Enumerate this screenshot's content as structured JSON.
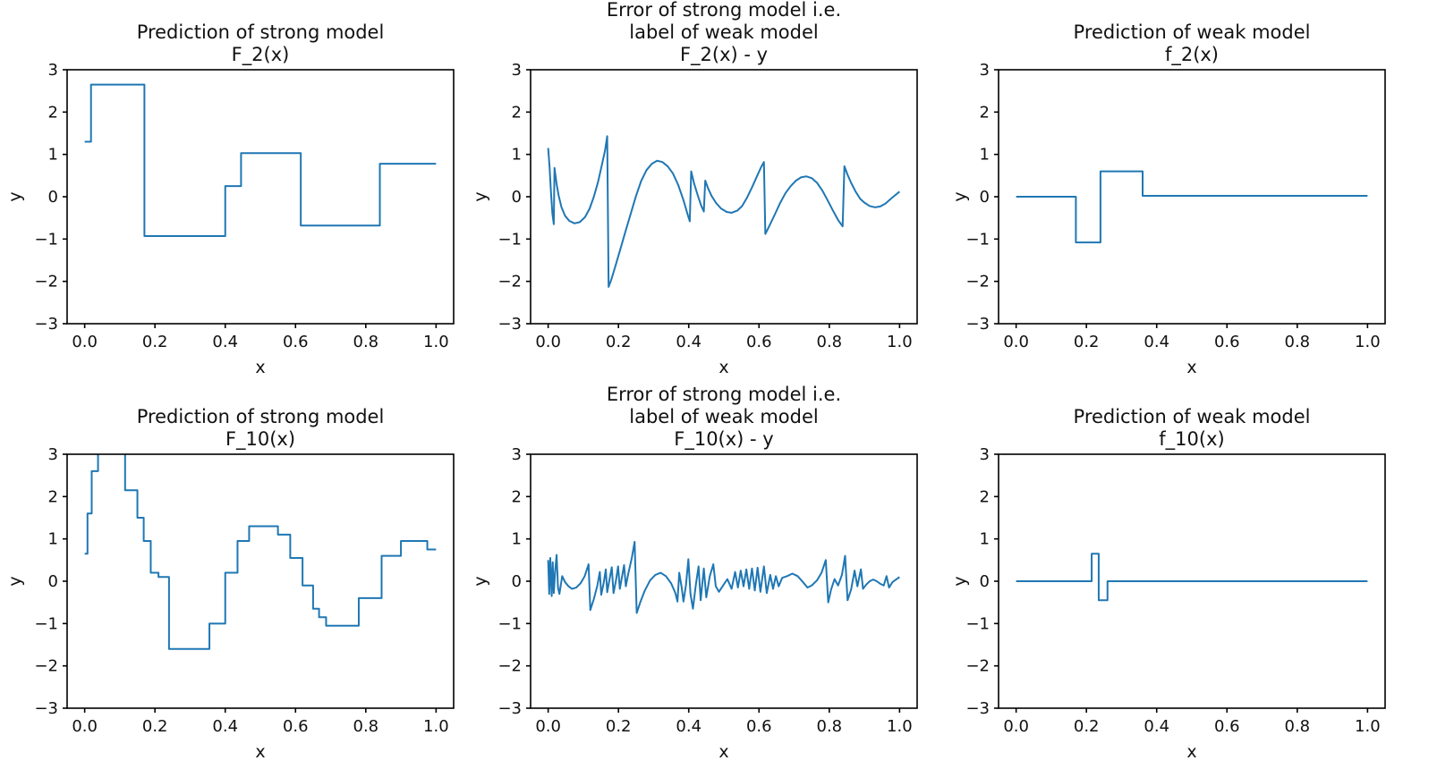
{
  "figure": {
    "background": "#ffffff",
    "line_color": "#1f77b4",
    "axis_color": "#000000",
    "text_color": "#111111",
    "xlabel": "x",
    "ylabel": "y",
    "xlim": [
      -0.05,
      1.05
    ],
    "ylim": [
      -3,
      3
    ],
    "grid": false,
    "legend": "none",
    "x_tick_values": [
      0.0,
      0.2,
      0.4,
      0.6,
      0.8,
      1.0
    ],
    "x_tick_labels": [
      "0.0",
      "0.2",
      "0.4",
      "0.6",
      "0.8",
      "1.0"
    ],
    "y_tick_values": [
      3,
      2,
      1,
      0,
      -1,
      -2,
      -3
    ],
    "y_tick_labels": [
      "3",
      "2",
      "1",
      "0",
      "−1",
      "−2",
      "−3"
    ]
  },
  "chart_data": [
    {
      "id": "strong-F2",
      "type": "step",
      "position": {
        "row": 0,
        "col": 0
      },
      "title_lines": [
        "Prediction of strong model",
        "F_2(x)"
      ],
      "xlabel": "x",
      "ylabel": "y",
      "steps": [
        [
          0.0,
          0.018,
          1.3
        ],
        [
          0.018,
          0.17,
          2.65
        ],
        [
          0.17,
          0.4,
          -0.93
        ],
        [
          0.4,
          0.445,
          0.25
        ],
        [
          0.445,
          0.615,
          1.03
        ],
        [
          0.615,
          0.84,
          -0.68
        ],
        [
          0.84,
          1.0,
          0.78
        ]
      ]
    },
    {
      "id": "error-F2",
      "type": "line",
      "position": {
        "row": 0,
        "col": 1
      },
      "title_lines": [
        "Error of strong model i.e.",
        "label of weak model",
        "F_2(x) - y"
      ],
      "xlabel": "x",
      "ylabel": "y",
      "points": [
        [
          0.0,
          1.15
        ],
        [
          0.004,
          0.7
        ],
        [
          0.008,
          0.1
        ],
        [
          0.012,
          -0.4
        ],
        [
          0.016,
          -0.65
        ],
        [
          0.018,
          0.68
        ],
        [
          0.024,
          0.3
        ],
        [
          0.03,
          0.02
        ],
        [
          0.038,
          -0.25
        ],
        [
          0.048,
          -0.45
        ],
        [
          0.06,
          -0.57
        ],
        [
          0.075,
          -0.63
        ],
        [
          0.09,
          -0.6
        ],
        [
          0.105,
          -0.48
        ],
        [
          0.118,
          -0.28
        ],
        [
          0.13,
          0.0
        ],
        [
          0.142,
          0.35
        ],
        [
          0.152,
          0.72
        ],
        [
          0.162,
          1.1
        ],
        [
          0.168,
          1.43
        ],
        [
          0.172,
          -2.13
        ],
        [
          0.18,
          -1.95
        ],
        [
          0.192,
          -1.62
        ],
        [
          0.205,
          -1.25
        ],
        [
          0.22,
          -0.82
        ],
        [
          0.235,
          -0.4
        ],
        [
          0.25,
          0.02
        ],
        [
          0.265,
          0.38
        ],
        [
          0.28,
          0.63
        ],
        [
          0.295,
          0.78
        ],
        [
          0.31,
          0.85
        ],
        [
          0.325,
          0.82
        ],
        [
          0.34,
          0.72
        ],
        [
          0.355,
          0.55
        ],
        [
          0.37,
          0.28
        ],
        [
          0.385,
          -0.08
        ],
        [
          0.398,
          -0.45
        ],
        [
          0.403,
          -0.58
        ],
        [
          0.407,
          0.6
        ],
        [
          0.415,
          0.32
        ],
        [
          0.425,
          0.05
        ],
        [
          0.435,
          -0.2
        ],
        [
          0.443,
          -0.35
        ],
        [
          0.447,
          0.38
        ],
        [
          0.455,
          0.2
        ],
        [
          0.465,
          0.02
        ],
        [
          0.478,
          -0.15
        ],
        [
          0.492,
          -0.28
        ],
        [
          0.508,
          -0.36
        ],
        [
          0.522,
          -0.38
        ],
        [
          0.538,
          -0.33
        ],
        [
          0.552,
          -0.22
        ],
        [
          0.566,
          -0.02
        ],
        [
          0.58,
          0.22
        ],
        [
          0.594,
          0.48
        ],
        [
          0.606,
          0.7
        ],
        [
          0.614,
          0.82
        ],
        [
          0.618,
          -0.88
        ],
        [
          0.63,
          -0.68
        ],
        [
          0.645,
          -0.42
        ],
        [
          0.66,
          -0.15
        ],
        [
          0.675,
          0.08
        ],
        [
          0.69,
          0.25
        ],
        [
          0.705,
          0.38
        ],
        [
          0.72,
          0.46
        ],
        [
          0.735,
          0.48
        ],
        [
          0.75,
          0.44
        ],
        [
          0.765,
          0.33
        ],
        [
          0.78,
          0.15
        ],
        [
          0.795,
          -0.08
        ],
        [
          0.81,
          -0.32
        ],
        [
          0.825,
          -0.55
        ],
        [
          0.838,
          -0.7
        ],
        [
          0.843,
          0.72
        ],
        [
          0.852,
          0.52
        ],
        [
          0.862,
          0.33
        ],
        [
          0.875,
          0.12
        ],
        [
          0.888,
          -0.05
        ],
        [
          0.9,
          -0.14
        ],
        [
          0.915,
          -0.22
        ],
        [
          0.93,
          -0.25
        ],
        [
          0.945,
          -0.23
        ],
        [
          0.96,
          -0.16
        ],
        [
          0.975,
          -0.05
        ],
        [
          0.988,
          0.04
        ],
        [
          1.0,
          0.12
        ]
      ]
    },
    {
      "id": "weak-f2",
      "type": "step",
      "position": {
        "row": 0,
        "col": 2
      },
      "title_lines": [
        "Prediction of weak model",
        "f_2(x)"
      ],
      "xlabel": "x",
      "ylabel": "y",
      "steps": [
        [
          0.0,
          0.17,
          0.0
        ],
        [
          0.17,
          0.24,
          -1.08
        ],
        [
          0.24,
          0.36,
          0.6
        ],
        [
          0.36,
          1.0,
          0.02
        ]
      ]
    },
    {
      "id": "strong-F10",
      "type": "step",
      "position": {
        "row": 1,
        "col": 0
      },
      "title_lines": [
        "Prediction of strong model",
        "F_10(x)"
      ],
      "xlabel": "x",
      "ylabel": "y",
      "steps": [
        [
          0.0,
          0.008,
          0.65
        ],
        [
          0.008,
          0.02,
          1.6
        ],
        [
          0.02,
          0.038,
          2.6
        ],
        [
          0.038,
          0.115,
          3.4
        ],
        [
          0.115,
          0.15,
          2.15
        ],
        [
          0.15,
          0.168,
          1.5
        ],
        [
          0.168,
          0.188,
          0.95
        ],
        [
          0.188,
          0.21,
          0.2
        ],
        [
          0.21,
          0.24,
          0.1
        ],
        [
          0.24,
          0.355,
          -1.6
        ],
        [
          0.355,
          0.4,
          -1.0
        ],
        [
          0.4,
          0.435,
          0.2
        ],
        [
          0.435,
          0.468,
          0.95
        ],
        [
          0.468,
          0.55,
          1.3
        ],
        [
          0.55,
          0.585,
          1.1
        ],
        [
          0.585,
          0.62,
          0.55
        ],
        [
          0.62,
          0.65,
          -0.1
        ],
        [
          0.65,
          0.667,
          -0.65
        ],
        [
          0.667,
          0.687,
          -0.85
        ],
        [
          0.687,
          0.78,
          -1.05
        ],
        [
          0.78,
          0.845,
          -0.4
        ],
        [
          0.845,
          0.9,
          0.6
        ],
        [
          0.9,
          0.975,
          0.95
        ],
        [
          0.975,
          1.0,
          0.75
        ]
      ]
    },
    {
      "id": "error-F10",
      "type": "line",
      "position": {
        "row": 1,
        "col": 1
      },
      "title_lines": [
        "Error of strong model i.e.",
        "label of weak model",
        "F_10(x) - y"
      ],
      "xlabel": "x",
      "ylabel": "y",
      "points": [
        [
          0.0,
          0.5
        ],
        [
          0.003,
          -0.3
        ],
        [
          0.006,
          0.55
        ],
        [
          0.01,
          -0.35
        ],
        [
          0.013,
          0.45
        ],
        [
          0.016,
          -0.28
        ],
        [
          0.02,
          0.25
        ],
        [
          0.024,
          0.62
        ],
        [
          0.028,
          -0.15
        ],
        [
          0.032,
          -0.3
        ],
        [
          0.04,
          0.12
        ],
        [
          0.048,
          -0.02
        ],
        [
          0.058,
          -0.12
        ],
        [
          0.068,
          -0.18
        ],
        [
          0.08,
          -0.15
        ],
        [
          0.092,
          -0.05
        ],
        [
          0.104,
          0.12
        ],
        [
          0.115,
          0.4
        ],
        [
          0.12,
          -0.68
        ],
        [
          0.13,
          -0.42
        ],
        [
          0.14,
          -0.1
        ],
        [
          0.147,
          0.22
        ],
        [
          0.151,
          -0.32
        ],
        [
          0.158,
          -0.04
        ],
        [
          0.164,
          0.28
        ],
        [
          0.168,
          -0.26
        ],
        [
          0.175,
          0.06
        ],
        [
          0.181,
          0.33
        ],
        [
          0.186,
          -0.28
        ],
        [
          0.193,
          0.02
        ],
        [
          0.199,
          0.35
        ],
        [
          0.204,
          -0.18
        ],
        [
          0.21,
          0.1
        ],
        [
          0.216,
          0.38
        ],
        [
          0.221,
          -0.12
        ],
        [
          0.228,
          0.18
        ],
        [
          0.238,
          0.55
        ],
        [
          0.246,
          0.93
        ],
        [
          0.252,
          -0.75
        ],
        [
          0.262,
          -0.5
        ],
        [
          0.275,
          -0.22
        ],
        [
          0.29,
          0.02
        ],
        [
          0.305,
          0.15
        ],
        [
          0.32,
          0.2
        ],
        [
          0.335,
          0.12
        ],
        [
          0.35,
          -0.05
        ],
        [
          0.362,
          -0.28
        ],
        [
          0.368,
          -0.48
        ],
        [
          0.373,
          0.2
        ],
        [
          0.38,
          -0.15
        ],
        [
          0.385,
          -0.48
        ],
        [
          0.392,
          -0.1
        ],
        [
          0.399,
          0.52
        ],
        [
          0.405,
          -0.3
        ],
        [
          0.412,
          -0.65
        ],
        [
          0.42,
          -0.1
        ],
        [
          0.428,
          0.35
        ],
        [
          0.434,
          -0.45
        ],
        [
          0.443,
          0.3
        ],
        [
          0.45,
          -0.38
        ],
        [
          0.46,
          0.12
        ],
        [
          0.47,
          0.4
        ],
        [
          0.477,
          -0.12
        ],
        [
          0.486,
          -0.25
        ],
        [
          0.498,
          -0.1
        ],
        [
          0.51,
          0.05
        ],
        [
          0.522,
          -0.18
        ],
        [
          0.532,
          0.22
        ],
        [
          0.54,
          -0.15
        ],
        [
          0.548,
          0.25
        ],
        [
          0.556,
          -0.12
        ],
        [
          0.564,
          0.28
        ],
        [
          0.572,
          -0.18
        ],
        [
          0.58,
          0.3
        ],
        [
          0.588,
          -0.22
        ],
        [
          0.596,
          0.32
        ],
        [
          0.604,
          -0.25
        ],
        [
          0.614,
          0.35
        ],
        [
          0.622,
          -0.28
        ],
        [
          0.632,
          0.15
        ],
        [
          0.64,
          -0.18
        ],
        [
          0.648,
          0.12
        ],
        [
          0.656,
          -0.12
        ],
        [
          0.666,
          0.08
        ],
        [
          0.68,
          0.12
        ],
        [
          0.695,
          0.18
        ],
        [
          0.71,
          0.12
        ],
        [
          0.725,
          -0.02
        ],
        [
          0.738,
          -0.15
        ],
        [
          0.75,
          -0.1
        ],
        [
          0.765,
          0.02
        ],
        [
          0.778,
          0.2
        ],
        [
          0.79,
          0.5
        ],
        [
          0.797,
          -0.5
        ],
        [
          0.805,
          -0.2
        ],
        [
          0.815,
          0.05
        ],
        [
          0.825,
          -0.1
        ],
        [
          0.836,
          0.15
        ],
        [
          0.845,
          0.6
        ],
        [
          0.852,
          -0.45
        ],
        [
          0.862,
          -0.2
        ],
        [
          0.872,
          0.25
        ],
        [
          0.88,
          -0.12
        ],
        [
          0.89,
          0.28
        ],
        [
          0.896,
          -0.18
        ],
        [
          0.905,
          -0.08
        ],
        [
          0.915,
          0.0
        ],
        [
          0.925,
          0.04
        ],
        [
          0.935,
          0.0
        ],
        [
          0.945,
          -0.06
        ],
        [
          0.955,
          -0.1
        ],
        [
          0.963,
          0.12
        ],
        [
          0.97,
          -0.15
        ],
        [
          0.98,
          -0.02
        ],
        [
          0.99,
          0.04
        ],
        [
          1.0,
          0.1
        ]
      ]
    },
    {
      "id": "weak-f10",
      "type": "step",
      "position": {
        "row": 1,
        "col": 2
      },
      "title_lines": [
        "Prediction of weak model",
        "f_10(x)"
      ],
      "xlabel": "x",
      "ylabel": "y",
      "steps": [
        [
          0.0,
          0.215,
          0.0
        ],
        [
          0.215,
          0.235,
          0.65
        ],
        [
          0.235,
          0.26,
          -0.45
        ],
        [
          0.26,
          1.0,
          0.0
        ]
      ]
    }
  ]
}
